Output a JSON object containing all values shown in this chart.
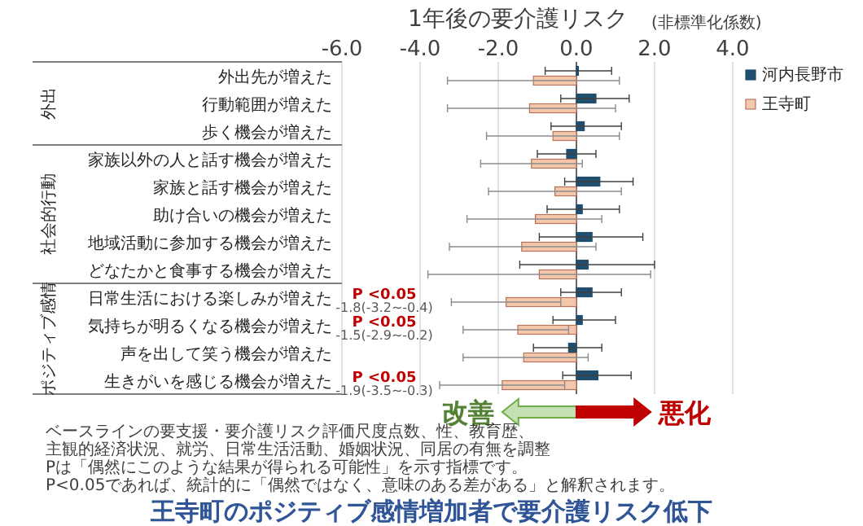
{
  "chart_data": {
    "type": "bar",
    "orientation": "horizontal",
    "title": "王寺町のポジティブ感情増加者で要介護リスク低下",
    "xlabel": "1年後の要介護リスク",
    "subtitle": "(非標準化係数)",
    "categories": [
      "外出先が増えた",
      "行動範囲が増えた",
      "歩く機会が増えた",
      "家族以外の人と話す機会が増えた",
      "家族と話す機会が増えた",
      "助け合いの機会が増えた",
      "地域活動に参加する機会が増えた",
      "どなたかと食事する機会が増えた",
      "日常生活における楽しみが増えた",
      "気持ちが明るくなる機会が増えた",
      "声を出して笑う機会が増えた",
      "生きがいを感じる機会が増えた"
    ],
    "series": [
      {
        "name": "河内長野市",
        "color": "#1f4e6e",
        "values": [
          0.05,
          0.5,
          0.2,
          -0.25,
          0.6,
          0.15,
          0.4,
          0.3,
          0.4,
          0.15,
          -0.2,
          0.55
        ],
        "errors": [
          [
            -0.8,
            0.9
          ],
          [
            -0.4,
            1.35
          ],
          [
            -0.65,
            1.15
          ],
          [
            -1.0,
            0.5
          ],
          [
            -0.3,
            1.45
          ],
          [
            -0.75,
            1.1
          ],
          [
            -0.95,
            1.7
          ],
          [
            -1.45,
            2.0
          ],
          [
            -0.4,
            1.15
          ],
          [
            -0.6,
            1.0
          ],
          [
            -1.1,
            0.65
          ],
          [
            -0.35,
            1.4
          ]
        ]
      },
      {
        "name": "王寺町",
        "color": "#f4c7ad",
        "values": [
          -1.1,
          -1.2,
          -0.6,
          -1.15,
          -0.55,
          -1.05,
          -1.4,
          -0.95,
          -1.8,
          -1.5,
          -1.35,
          -1.9
        ],
        "errors": [
          [
            -3.3,
            1.1
          ],
          [
            -3.3,
            1.0
          ],
          [
            -2.3,
            1.1
          ],
          [
            -2.45,
            0.15
          ],
          [
            -2.25,
            1.15
          ],
          [
            -2.8,
            0.65
          ],
          [
            -3.25,
            0.5
          ],
          [
            -3.8,
            1.9
          ],
          [
            -3.2,
            -0.4
          ],
          [
            -2.9,
            -0.2
          ],
          [
            -2.9,
            0.3
          ],
          [
            -3.5,
            -0.3
          ]
        ],
        "value_labels": [
          null,
          null,
          null,
          null,
          null,
          null,
          null,
          null,
          "-1.8(-3.2~-0.4)",
          "-1.5(-2.9~-0.2)",
          null,
          "-1.9(-3.5~-0.3)"
        ]
      }
    ],
    "xlim": [
      -6,
      4
    ],
    "xticks": [
      {
        "value": -6,
        "label": "-6.0"
      },
      {
        "value": -4,
        "label": "-4.0"
      },
      {
        "value": -2,
        "label": "-2.0"
      },
      {
        "value": 0,
        "label": "0.0"
      },
      {
        "value": 2,
        "label": "2.0"
      },
      {
        "value": 4,
        "label": "4.0"
      }
    ],
    "grid": "x",
    "legend": "top right",
    "annotations": [
      "P <0.05",
      "P <0.05",
      "P <0.05",
      "外出",
      "社会的行動",
      "ポジティブ感情",
      "改善",
      "悪化",
      "ベースラインの要支援・要介護リスク評価尺度点数、性、教育歴、",
      "主観的経済状況、就労、日常生活活動、婚姻状況、同居の有無を調整",
      "Pは「偶然にこのような結果が得られる可能性」を示す指標です。",
      "P<0.05であれば、統計的に「偶然ではなく、意味のある差がある」と解釈されます。"
    ]
  }
}
